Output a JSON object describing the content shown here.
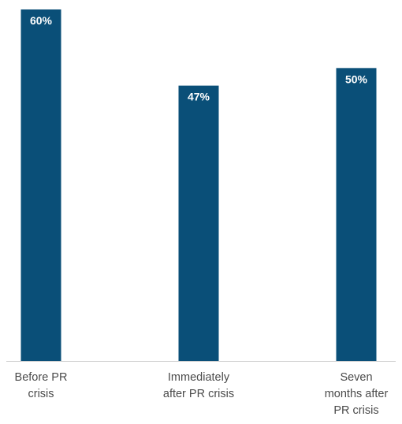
{
  "chart_data": {
    "type": "bar",
    "categories": [
      [
        "Before PR",
        "crisis"
      ],
      [
        "Immediately",
        "after PR crisis"
      ],
      [
        "Seven",
        "months after",
        "PR crisis"
      ]
    ],
    "values": [
      60,
      47,
      50
    ],
    "data_labels": [
      "60%",
      "47%",
      "50%"
    ],
    "title": "",
    "xlabel": "",
    "ylabel": "",
    "ylim": [
      0,
      60
    ],
    "grid": false,
    "legend": "none",
    "bar_color": "#0a4f78",
    "baseline_color": "#cfcfcf"
  }
}
